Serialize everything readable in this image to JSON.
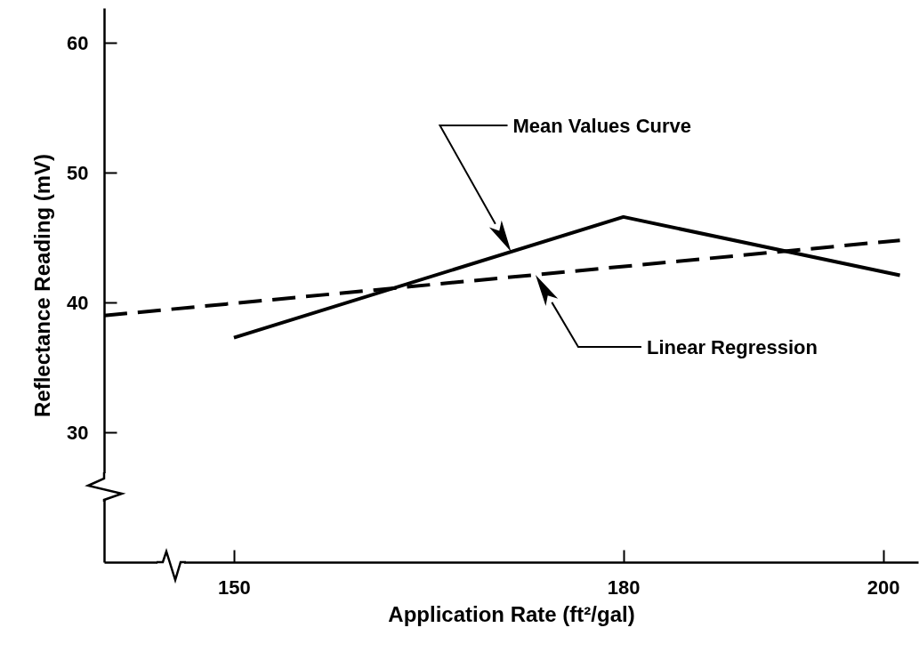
{
  "chart_data": {
    "type": "line",
    "xlabel": "Application Rate (ft²/gal)",
    "ylabel": "Reflectance Reading (mV)",
    "xlim": [
      140,
      202.7
    ],
    "ylim": [
      20,
      62.7
    ],
    "xticks": [
      150,
      180,
      200
    ],
    "yticks": [
      30,
      40,
      50,
      60
    ],
    "grid": false,
    "marker": "none",
    "series": [
      {
        "color": "#000000",
        "line_style": "solid",
        "x": [
          150,
          180,
          201.3
        ],
        "values": [
          37.3,
          46.6,
          42.1
        ]
      },
      {
        "color": "#000000",
        "line_style": "dashed",
        "x": [
          140,
          201.3
        ],
        "values": [
          39.0,
          44.8
        ]
      }
    ],
    "annotations": [
      "Mean Values Curve",
      "Linear Regression"
    ]
  }
}
